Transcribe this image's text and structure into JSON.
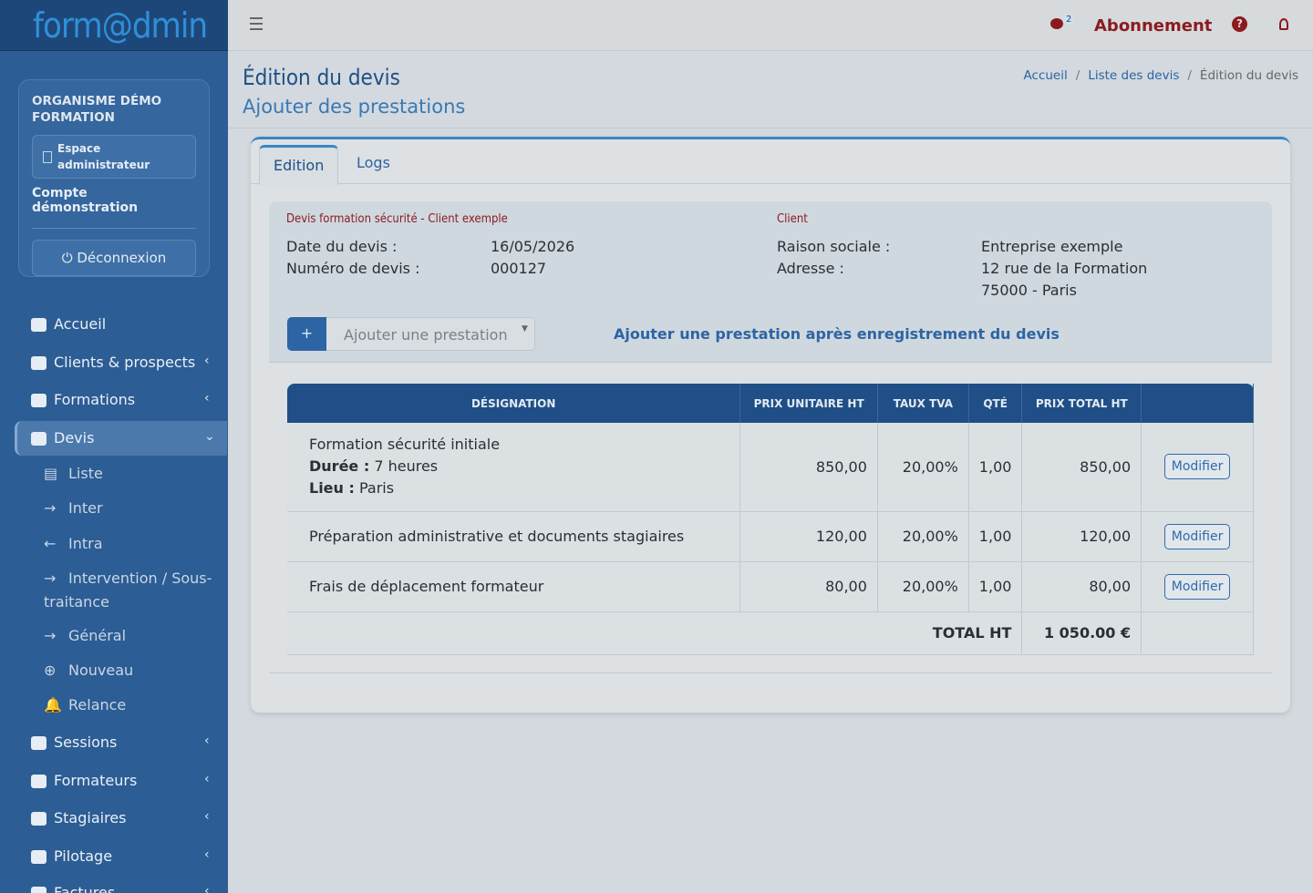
{
  "brand": "form@dmin",
  "org": {
    "name": "ORGANISME DÉMO FORMATION",
    "space": "Espace administrateur",
    "account": "Compte démonstration",
    "logout": "Déconnexion"
  },
  "nav": [
    {
      "label": "Accueil"
    },
    {
      "label": "Clients & prospects"
    },
    {
      "label": "Formations"
    },
    {
      "label": "Devis",
      "children": [
        "Liste",
        "Inter",
        "Intra",
        "Intervention / Sous-traitance",
        "Général",
        "Nouveau",
        "Relance"
      ]
    },
    {
      "label": "Sessions"
    },
    {
      "label": "Formateurs"
    },
    {
      "label": "Stagiaires"
    },
    {
      "label": "Pilotage"
    },
    {
      "label": "Factures"
    }
  ],
  "topbar": {
    "notifications": 2,
    "subscription": "Abonnement"
  },
  "page": {
    "title": "Édition du devis",
    "subtitle": "Ajouter des prestations"
  },
  "breadcrumb": [
    "Accueil",
    "Liste des devis",
    "Édition du devis"
  ],
  "tabs": [
    "Edition",
    "Logs"
  ],
  "quote": {
    "heading": "Devis formation sécurité - Client exemple",
    "fields": [
      {
        "label": "Date du devis :",
        "value": "16/05/2026"
      },
      {
        "label": "Numéro de devis :",
        "value": "000127"
      }
    ]
  },
  "client": {
    "heading": "Client",
    "fields": [
      {
        "label": "Raison sociale :",
        "lines": [
          "Entreprise exemple"
        ]
      },
      {
        "label": "Adresse :",
        "lines": [
          "12 rue de la Formation",
          "75000 - Paris"
        ]
      }
    ]
  },
  "add": {
    "button": "+",
    "placeholder": "Ajouter une prestation",
    "notice": "Ajouter une prestation après enregistrement du devis"
  },
  "table": {
    "columns": [
      "DÉSIGNATION",
      "PRIX UNITAIRE HT",
      "TAUX TVA",
      "QTÉ",
      "PRIX TOTAL HT"
    ],
    "rows": [
      {
        "designation": "Formation sécurité initiale",
        "details": [
          {
            "label": "Durée :",
            "value": "7 heures"
          },
          {
            "label": "Lieu :",
            "value": "Paris"
          }
        ],
        "unit_price": "850,00",
        "vat": "20,00%",
        "qty": "1,00",
        "total": "850,00",
        "action": "Modifier"
      },
      {
        "designation": "Préparation administrative et documents stagiaires",
        "details": [],
        "unit_price": "120,00",
        "vat": "20,00%",
        "qty": "1,00",
        "total": "120,00",
        "action": "Modifier"
      },
      {
        "designation": "Frais de déplacement formateur",
        "details": [],
        "unit_price": "80,00",
        "vat": "20,00%",
        "qty": "1,00",
        "total": "80,00",
        "action": "Modifier"
      }
    ],
    "total_label": "TOTAL HT",
    "total": "1 050.00 €"
  }
}
